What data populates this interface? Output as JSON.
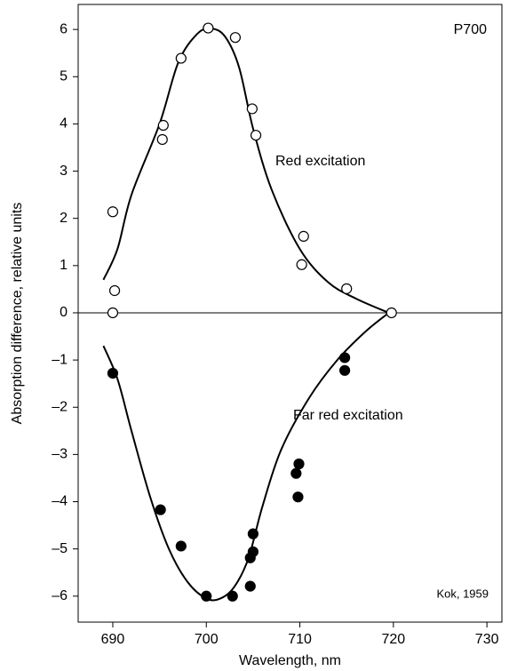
{
  "chart_data": {
    "type": "scatter",
    "xlabel": "Wavelength, nm",
    "ylabel": "Absorption difference, relative units",
    "annotations": [
      "P700",
      "Red excitation",
      "Far red excitation",
      "Kok, 1959"
    ],
    "xlim": [
      686.3,
      731.6
    ],
    "ylim": [
      -6.55,
      6.53
    ],
    "xticks": [
      690,
      700,
      710,
      720,
      730
    ],
    "yticks": [
      {
        "value": -6,
        "label": "–6"
      },
      {
        "value": -5,
        "label": "–5"
      },
      {
        "value": -4,
        "label": "–4"
      },
      {
        "value": -3,
        "label": "–3"
      },
      {
        "value": -2,
        "label": "–2"
      },
      {
        "value": -1,
        "label": "–1"
      },
      0,
      1,
      2,
      3,
      4,
      5,
      6
    ],
    "hline": 0,
    "series": [
      {
        "marker": "open",
        "color": "#000000",
        "x": [
          690,
          690.2,
          690,
          695.4,
          695.3,
          697.3,
          700.2,
          703.1,
          704.9,
          705.3,
          710.2,
          710.4,
          715,
          719.8
        ],
        "values": [
          2.14,
          0.47,
          0,
          3.97,
          3.67,
          5.39,
          6.03,
          5.83,
          4.32,
          3.76,
          1.02,
          1.62,
          0.51,
          0
        ]
      },
      {
        "marker": "filled",
        "color": "#000000",
        "x": [
          690,
          695.1,
          697.3,
          700,
          702.8,
          704.7,
          705,
          705,
          704.7,
          709.6,
          709.9,
          709.8,
          714.8,
          714.8
        ],
        "values": [
          -1.28,
          -4.17,
          -4.94,
          -6,
          -6,
          -5.79,
          -5.06,
          -4.68,
          -5.19,
          -3.4,
          -3.2,
          -3.9,
          -0.95,
          -1.22
        ]
      },
      {
        "marker": "line",
        "color": "#000000",
        "x": [
          689,
          690.5,
          692,
          695,
          697,
          699,
          700.5,
          702,
          703.5,
          705,
          707,
          710,
          713,
          716,
          719.5
        ],
        "values": [
          0.7,
          1.35,
          2.5,
          4,
          5.3,
          5.9,
          6.02,
          5.85,
          5.2,
          3.9,
          2.6,
          1.35,
          0.65,
          0.3,
          0
        ]
      },
      {
        "marker": "line",
        "color": "#000000",
        "x": [
          689,
          690.5,
          692,
          694,
          696,
          698,
          700,
          701.5,
          703,
          704.5,
          706,
          708,
          711,
          714,
          717,
          719.5
        ],
        "values": [
          -0.7,
          -1.4,
          -2.5,
          -3.9,
          -5,
          -5.7,
          -6.05,
          -6.05,
          -5.8,
          -5.2,
          -4.1,
          -2.9,
          -1.8,
          -1,
          -0.4,
          0
        ]
      }
    ]
  }
}
